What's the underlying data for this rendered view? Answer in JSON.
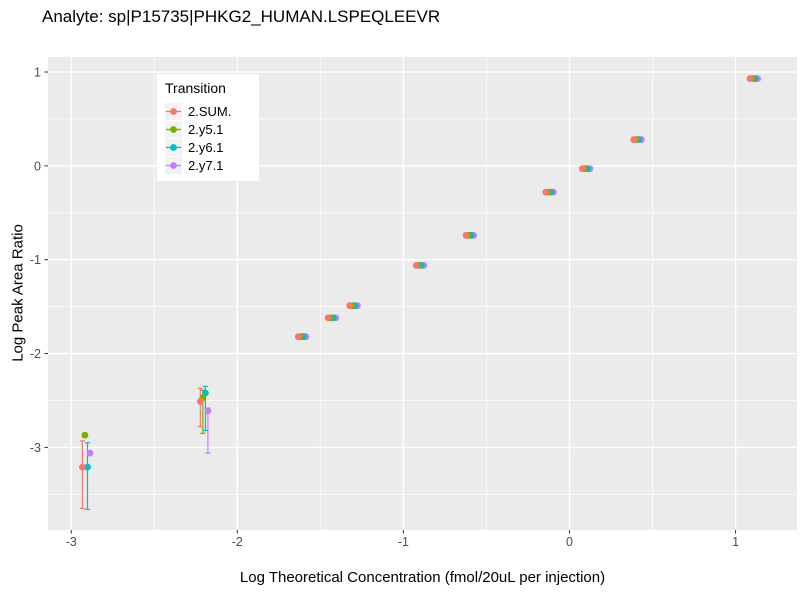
{
  "title": "Analyte: sp|P15735|PHKG2_HUMAN.LSPEQLEEVR",
  "chart_data": {
    "type": "scatter",
    "title": "Analyte: sp|P15735|PHKG2_HUMAN.LSPEQLEEVR",
    "xlabel": "Log Theoretical Concentration (fmol/20uL per injection)",
    "ylabel": "Log Peak Area Ratio",
    "xlim": [
      -3.14,
      1.37
    ],
    "ylim": [
      -3.88,
      1.16
    ],
    "x_major_ticks": [
      -3,
      -2,
      -1,
      0,
      1
    ],
    "x_minor_ticks": [
      -2.5,
      -1.5,
      -0.5,
      0.5
    ],
    "y_major_ticks": [
      1,
      0,
      -1,
      -2,
      -3
    ],
    "y_minor_ticks": [
      0.5,
      -0.5,
      -1.5,
      -2.5,
      -3.5
    ],
    "grid": "major+minor",
    "legend": {
      "title": "Transition",
      "position": "inside-top-left"
    },
    "colors": {
      "panel_bg": "#EBEBEB",
      "gridline": "#FFFFFF",
      "tick": "#333333",
      "tick_label": "#4D4D4D"
    },
    "series": [
      {
        "name": "2.SUM.",
        "color": "#F8766D",
        "points": [
          {
            "x": -2.91,
            "y": -3.21,
            "ymin": -3.65,
            "ymax": -2.93
          },
          {
            "x": -2.2,
            "y": -2.51,
            "ymin": -2.78,
            "ymax": -2.37
          },
          {
            "x": -1.61,
            "y": -1.82
          },
          {
            "x": -1.43,
            "y": -1.62
          },
          {
            "x": -1.3,
            "y": -1.49
          },
          {
            "x": -0.9,
            "y": -1.06
          },
          {
            "x": -0.6,
            "y": -0.74
          },
          {
            "x": -0.12,
            "y": -0.28
          },
          {
            "x": 0.1,
            "y": -0.03
          },
          {
            "x": 0.41,
            "y": 0.28
          },
          {
            "x": 1.11,
            "y": 0.93
          }
        ]
      },
      {
        "name": "2.y5.1",
        "color": "#7CAE00",
        "points": [
          {
            "x": -2.91,
            "y": -2.87
          },
          {
            "x": -2.2,
            "y": -2.47,
            "ymin": -2.85,
            "ymax": -2.39
          },
          {
            "x": -1.61,
            "y": -1.82
          },
          {
            "x": -1.43,
            "y": -1.62
          },
          {
            "x": -1.3,
            "y": -1.49
          },
          {
            "x": -0.9,
            "y": -1.06
          },
          {
            "x": -0.6,
            "y": -0.74
          },
          {
            "x": -0.12,
            "y": -0.28
          },
          {
            "x": 0.1,
            "y": -0.03
          },
          {
            "x": 0.41,
            "y": 0.28
          },
          {
            "x": 1.11,
            "y": 0.93
          }
        ]
      },
      {
        "name": "2.y6.1",
        "color": "#00BFC4",
        "points": [
          {
            "x": -2.91,
            "y": -3.21,
            "ymin": -3.66,
            "ymax": -2.95
          },
          {
            "x": -2.2,
            "y": -2.42,
            "ymin": -2.82,
            "ymax": -2.35
          },
          {
            "x": -1.61,
            "y": -1.82
          },
          {
            "x": -1.43,
            "y": -1.62
          },
          {
            "x": -1.3,
            "y": -1.49
          },
          {
            "x": -0.9,
            "y": -1.06
          },
          {
            "x": -0.6,
            "y": -0.74
          },
          {
            "x": -0.12,
            "y": -0.28
          },
          {
            "x": 0.1,
            "y": -0.03
          },
          {
            "x": 0.41,
            "y": 0.28
          },
          {
            "x": 1.11,
            "y": 0.93
          }
        ]
      },
      {
        "name": "2.y7.1",
        "color": "#C77CFF",
        "points": [
          {
            "x": -2.91,
            "y": -3.06
          },
          {
            "x": -2.2,
            "y": -2.61,
            "ymin": -3.06,
            "ymax": -2.58
          },
          {
            "x": -1.61,
            "y": -1.82
          },
          {
            "x": -1.43,
            "y": -1.62
          },
          {
            "x": -1.3,
            "y": -1.49
          },
          {
            "x": -0.9,
            "y": -1.06
          },
          {
            "x": -0.6,
            "y": -0.74
          },
          {
            "x": -0.12,
            "y": -0.28
          },
          {
            "x": 0.1,
            "y": -0.03
          },
          {
            "x": 0.41,
            "y": 0.28
          },
          {
            "x": 1.11,
            "y": 0.93
          }
        ]
      }
    ]
  }
}
